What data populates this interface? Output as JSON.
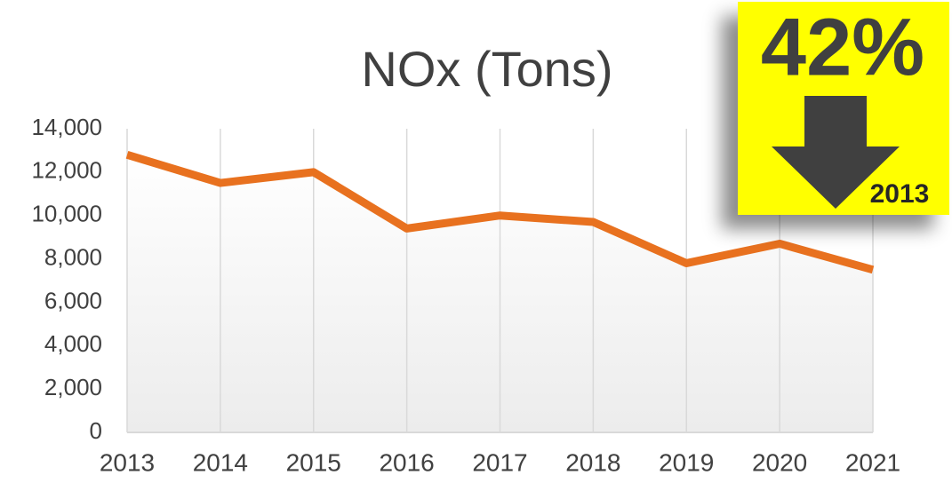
{
  "chart_data": {
    "type": "line",
    "title": "NOx (Tons)",
    "categories": [
      "2013",
      "2014",
      "2015",
      "2016",
      "2017",
      "2018",
      "2019",
      "2020",
      "2021"
    ],
    "series": [
      {
        "name": "NOx",
        "color": "#e8711f",
        "values": [
          12800,
          11500,
          12000,
          9400,
          10000,
          9700,
          7800,
          8700,
          7500
        ]
      }
    ],
    "ylim": [
      0,
      14000
    ],
    "yticks": [
      0,
      {
        "value": 2000,
        "label": "2,000"
      },
      {
        "value": 4000,
        "label": "4,000"
      },
      {
        "value": 6000,
        "label": "6,000"
      },
      {
        "value": 8000,
        "label": "8,000"
      },
      {
        "value": 10000,
        "label": "10,000"
      },
      {
        "value": 12000,
        "label": "12,000"
      },
      {
        "value": 14000,
        "label": "14,000"
      }
    ],
    "grid": true,
    "annotations": {
      "badge": "42%",
      "badge_note": "2013"
    }
  }
}
